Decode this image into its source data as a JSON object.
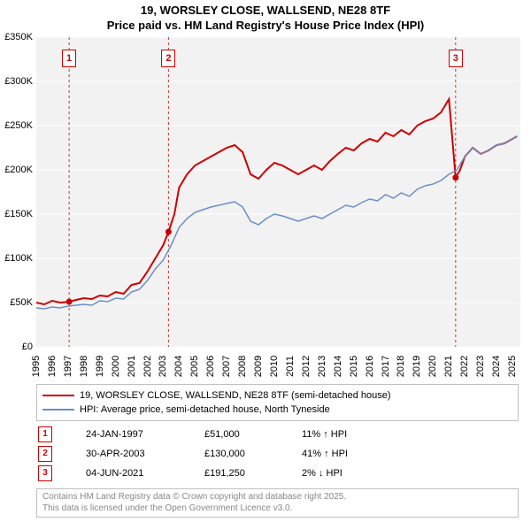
{
  "title_line1": "19, WORSLEY CLOSE, WALLSEND, NE28 8TF",
  "title_line2": "Price paid vs. HM Land Registry's House Price Index (HPI)",
  "chart": {
    "type": "line",
    "background_color": "#f2f2f2",
    "grid_color": "#e0e0e0",
    "x_min": 1995,
    "x_max": 2025.5,
    "y_min": 0,
    "y_max": 350000,
    "ytick_step": 50000,
    "y_labels": [
      "£0",
      "£50K",
      "£100K",
      "£150K",
      "£200K",
      "£250K",
      "£300K",
      "£350K"
    ],
    "x_labels": [
      "1995",
      "1996",
      "1997",
      "1998",
      "1999",
      "2000",
      "2001",
      "2002",
      "2003",
      "2004",
      "2005",
      "2006",
      "2007",
      "2008",
      "2009",
      "2010",
      "2011",
      "2012",
      "2013",
      "2014",
      "2015",
      "2016",
      "2017",
      "2018",
      "2019",
      "2020",
      "2021",
      "2022",
      "2023",
      "2024",
      "2025"
    ],
    "series": [
      {
        "name": "price_paid",
        "color": "#cc0000",
        "line_width": 2,
        "data": [
          [
            1995,
            50000
          ],
          [
            1995.5,
            48000
          ],
          [
            1996,
            52000
          ],
          [
            1996.5,
            50000
          ],
          [
            1997.08,
            51000
          ],
          [
            1997.5,
            53000
          ],
          [
            1998,
            55000
          ],
          [
            1998.5,
            54000
          ],
          [
            1999,
            58000
          ],
          [
            1999.5,
            57000
          ],
          [
            2000,
            62000
          ],
          [
            2000.5,
            60000
          ],
          [
            2001,
            70000
          ],
          [
            2001.5,
            72000
          ],
          [
            2002,
            85000
          ],
          [
            2002.5,
            100000
          ],
          [
            2003,
            115000
          ],
          [
            2003.33,
            130000
          ],
          [
            2003.7,
            150000
          ],
          [
            2004,
            180000
          ],
          [
            2004.5,
            195000
          ],
          [
            2005,
            205000
          ],
          [
            2005.5,
            210000
          ],
          [
            2006,
            215000
          ],
          [
            2006.5,
            220000
          ],
          [
            2007,
            225000
          ],
          [
            2007.5,
            228000
          ],
          [
            2008,
            220000
          ],
          [
            2008.5,
            195000
          ],
          [
            2009,
            190000
          ],
          [
            2009.5,
            200000
          ],
          [
            2010,
            208000
          ],
          [
            2010.5,
            205000
          ],
          [
            2011,
            200000
          ],
          [
            2011.5,
            195000
          ],
          [
            2012,
            200000
          ],
          [
            2012.5,
            205000
          ],
          [
            2013,
            200000
          ],
          [
            2013.5,
            210000
          ],
          [
            2014,
            218000
          ],
          [
            2014.5,
            225000
          ],
          [
            2015,
            222000
          ],
          [
            2015.5,
            230000
          ],
          [
            2016,
            235000
          ],
          [
            2016.5,
            232000
          ],
          [
            2017,
            242000
          ],
          [
            2017.5,
            238000
          ],
          [
            2018,
            245000
          ],
          [
            2018.5,
            240000
          ],
          [
            2019,
            250000
          ],
          [
            2019.5,
            255000
          ],
          [
            2020,
            258000
          ],
          [
            2020.5,
            265000
          ],
          [
            2021,
            280000
          ],
          [
            2021.42,
            191250
          ],
          [
            2021.7,
            200000
          ],
          [
            2022,
            215000
          ],
          [
            2022.5,
            225000
          ],
          [
            2023,
            218000
          ],
          [
            2023.5,
            222000
          ],
          [
            2024,
            228000
          ],
          [
            2024.5,
            230000
          ],
          [
            2025,
            235000
          ],
          [
            2025.3,
            238000
          ]
        ]
      },
      {
        "name": "hpi",
        "color": "#6a8fc5",
        "line_width": 1.5,
        "data": [
          [
            1995,
            44000
          ],
          [
            1995.5,
            43000
          ],
          [
            1996,
            45000
          ],
          [
            1996.5,
            44000
          ],
          [
            1997,
            46000
          ],
          [
            1997.5,
            47000
          ],
          [
            1998,
            48000
          ],
          [
            1998.5,
            47000
          ],
          [
            1999,
            52000
          ],
          [
            1999.5,
            51000
          ],
          [
            2000,
            55000
          ],
          [
            2000.5,
            54000
          ],
          [
            2001,
            62000
          ],
          [
            2001.5,
            65000
          ],
          [
            2002,
            75000
          ],
          [
            2002.5,
            88000
          ],
          [
            2003,
            98000
          ],
          [
            2003.5,
            115000
          ],
          [
            2004,
            135000
          ],
          [
            2004.5,
            145000
          ],
          [
            2005,
            152000
          ],
          [
            2005.5,
            155000
          ],
          [
            2006,
            158000
          ],
          [
            2006.5,
            160000
          ],
          [
            2007,
            162000
          ],
          [
            2007.5,
            164000
          ],
          [
            2008,
            158000
          ],
          [
            2008.5,
            142000
          ],
          [
            2009,
            138000
          ],
          [
            2009.5,
            145000
          ],
          [
            2010,
            150000
          ],
          [
            2010.5,
            148000
          ],
          [
            2011,
            145000
          ],
          [
            2011.5,
            142000
          ],
          [
            2012,
            145000
          ],
          [
            2012.5,
            148000
          ],
          [
            2013,
            145000
          ],
          [
            2013.5,
            150000
          ],
          [
            2014,
            155000
          ],
          [
            2014.5,
            160000
          ],
          [
            2015,
            158000
          ],
          [
            2015.5,
            163000
          ],
          [
            2016,
            167000
          ],
          [
            2016.5,
            165000
          ],
          [
            2017,
            172000
          ],
          [
            2017.5,
            168000
          ],
          [
            2018,
            174000
          ],
          [
            2018.5,
            170000
          ],
          [
            2019,
            178000
          ],
          [
            2019.5,
            182000
          ],
          [
            2020,
            184000
          ],
          [
            2020.5,
            188000
          ],
          [
            2021,
            195000
          ],
          [
            2021.5,
            200000
          ],
          [
            2022,
            215000
          ],
          [
            2022.5,
            225000
          ],
          [
            2023,
            218000
          ],
          [
            2023.5,
            222000
          ],
          [
            2024,
            228000
          ],
          [
            2024.5,
            230000
          ],
          [
            2025,
            235000
          ],
          [
            2025.3,
            238000
          ]
        ]
      }
    ],
    "markers": [
      {
        "n": "1",
        "x": 1997.07,
        "sale_point": [
          1997.07,
          51000
        ]
      },
      {
        "n": "2",
        "x": 2003.33,
        "sale_point": [
          2003.33,
          130000
        ]
      },
      {
        "n": "3",
        "x": 2021.42,
        "sale_point": [
          2021.42,
          191250
        ]
      }
    ],
    "marker_line_color": "#cc3333",
    "marker_line_dash": "3,3",
    "sale_dot_color": "#cc0000"
  },
  "legend": {
    "items": [
      {
        "color": "#cc0000",
        "label": "19, WORSLEY CLOSE, WALLSEND, NE28 8TF (semi-detached house)",
        "width": 2
      },
      {
        "color": "#6a8fc5",
        "label": "HPI: Average price, semi-detached house, North Tyneside",
        "width": 1.5
      }
    ]
  },
  "sales": [
    {
      "n": "1",
      "date": "24-JAN-1997",
      "price": "£51,000",
      "change": "11% ↑ HPI"
    },
    {
      "n": "2",
      "date": "30-APR-2003",
      "price": "£130,000",
      "change": "41% ↑ HPI"
    },
    {
      "n": "3",
      "date": "04-JUN-2021",
      "price": "£191,250",
      "change": "2% ↓ HPI"
    }
  ],
  "footer": {
    "line1": "Contains HM Land Registry data © Crown copyright and database right 2025.",
    "line2": "This data is licensed under the Open Government Licence v3.0."
  }
}
